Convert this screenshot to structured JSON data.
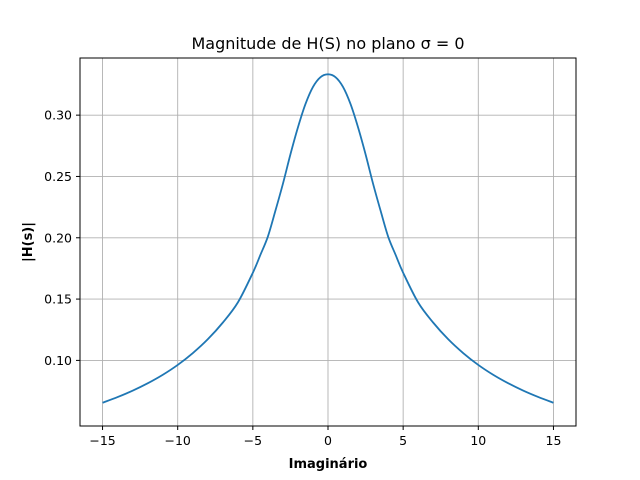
{
  "chart_data": {
    "type": "line",
    "title": "Magnitude de H(S) no plano σ = 0",
    "xlabel": "Imaginário",
    "ylabel": "|H(s)|",
    "xlim": [
      -16.5,
      16.5
    ],
    "ylim": [
      0.0465,
      0.3466
    ],
    "xticks": [
      -15,
      -10,
      -5,
      0,
      5,
      10,
      15
    ],
    "xtick_labels": [
      "−15",
      "−10",
      "−5",
      "0",
      "5",
      "10",
      "15"
    ],
    "yticks": [
      0.1,
      0.15,
      0.2,
      0.25,
      0.3
    ],
    "ytick_labels": [
      "0.10",
      "0.15",
      "0.20",
      "0.25",
      "0.30"
    ],
    "grid": true,
    "series": [
      {
        "color": "#1f77b4",
        "x": [
          -15,
          -14,
          -13,
          -12,
          -11,
          -10,
          -9,
          -8,
          -7,
          -6,
          -5,
          -4.5,
          -4,
          -3.5,
          -3,
          -2.5,
          -2,
          -1.5,
          -1,
          -0.5,
          0,
          0.5,
          1,
          1.5,
          2,
          2.5,
          3,
          3.5,
          4,
          4.5,
          5,
          6,
          7,
          8,
          9,
          10,
          11,
          12,
          13,
          14,
          15
        ],
        "y": [
          0.0655,
          0.0701,
          0.0753,
          0.0813,
          0.0882,
          0.0963,
          0.1059,
          0.1172,
          0.1308,
          0.1472,
          0.1715,
          0.186,
          0.201,
          0.222,
          0.244,
          0.268,
          0.29,
          0.309,
          0.323,
          0.331,
          0.3333,
          0.331,
          0.323,
          0.309,
          0.29,
          0.268,
          0.244,
          0.222,
          0.201,
          0.186,
          0.1715,
          0.1472,
          0.1308,
          0.1172,
          0.1059,
          0.0963,
          0.0882,
          0.0813,
          0.0753,
          0.0701,
          0.0655
        ]
      }
    ]
  }
}
